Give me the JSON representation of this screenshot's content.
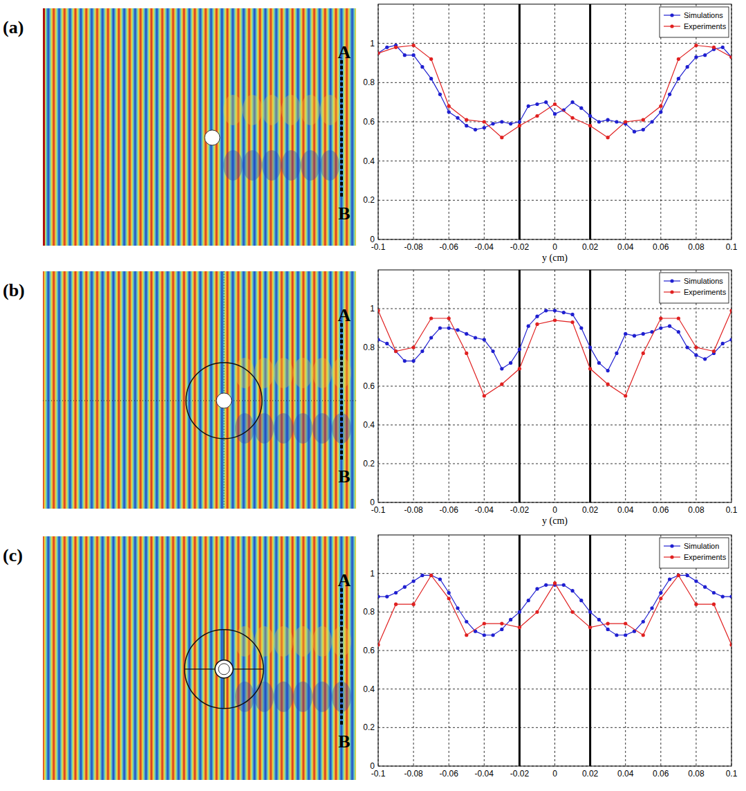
{
  "chart_data": [
    {
      "type": "line",
      "panel": "(a)",
      "field_labels": [
        "A",
        "B"
      ],
      "x_label": "y (cm)",
      "xlim": [
        -0.1,
        0.1
      ],
      "xticks": [
        -0.1,
        -0.08,
        -0.06,
        -0.04,
        -0.02,
        0,
        0.02,
        0.04,
        0.06,
        0.08,
        0.1
      ],
      "ylim": [
        0,
        1.2
      ],
      "yticks": [
        0,
        0.2,
        0.4,
        0.6,
        0.8,
        1
      ],
      "grid": true,
      "legend": "upper right",
      "vlines": [
        -0.02,
        0.02
      ],
      "series": [
        {
          "name": "Simulations",
          "color": "#1f1fd0",
          "marker": "circle",
          "line_style": "solid",
          "x": [
            -0.1,
            -0.095,
            -0.09,
            -0.085,
            -0.08,
            -0.075,
            -0.07,
            -0.065,
            -0.06,
            -0.055,
            -0.05,
            -0.045,
            -0.04,
            -0.035,
            -0.03,
            -0.025,
            -0.02,
            -0.015,
            -0.01,
            -0.005,
            0,
            0.005,
            0.01,
            0.015,
            0.02,
            0.025,
            0.03,
            0.035,
            0.04,
            0.045,
            0.05,
            0.055,
            0.06,
            0.065,
            0.07,
            0.075,
            0.08,
            0.085,
            0.09,
            0.095,
            0.1
          ],
          "values": [
            0.95,
            0.98,
            0.99,
            0.94,
            0.94,
            0.88,
            0.82,
            0.74,
            0.65,
            0.62,
            0.58,
            0.56,
            0.57,
            0.59,
            0.6,
            0.59,
            0.6,
            0.68,
            0.69,
            0.7,
            0.64,
            0.66,
            0.7,
            0.67,
            0.63,
            0.6,
            0.61,
            0.6,
            0.59,
            0.55,
            0.56,
            0.6,
            0.65,
            0.74,
            0.82,
            0.88,
            0.93,
            0.94,
            0.97,
            0.98,
            0.93
          ]
        },
        {
          "name": "Experiments",
          "color": "#e02020",
          "marker": "circle",
          "line_style": "solid",
          "x": [
            -0.1,
            -0.09,
            -0.08,
            -0.07,
            -0.06,
            -0.05,
            -0.04,
            -0.03,
            -0.02,
            -0.01,
            0,
            0.01,
            0.02,
            0.03,
            0.04,
            0.05,
            0.06,
            0.07,
            0.08,
            0.09,
            0.1
          ],
          "values": [
            0.95,
            0.98,
            0.99,
            0.92,
            0.68,
            0.61,
            0.6,
            0.52,
            0.58,
            0.63,
            0.69,
            0.62,
            0.58,
            0.52,
            0.6,
            0.61,
            0.68,
            0.92,
            0.99,
            0.98,
            0.93
          ]
        }
      ]
    },
    {
      "type": "line",
      "panel": "(b)",
      "field_labels": [
        "A",
        "B"
      ],
      "x_label": "y (cm)",
      "xlim": [
        -0.1,
        0.1
      ],
      "xticks": [
        -0.1,
        -0.08,
        -0.06,
        -0.04,
        -0.02,
        0,
        0.02,
        0.04,
        0.06,
        0.08,
        0.1
      ],
      "ylim": [
        0,
        1.2
      ],
      "yticks": [
        0,
        0.2,
        0.4,
        0.6,
        0.8,
        1
      ],
      "grid": true,
      "legend": "upper right",
      "vlines": [
        -0.02,
        0.02
      ],
      "series": [
        {
          "name": "Simulations",
          "color": "#1f1fd0",
          "marker": "circle",
          "line_style": "solid",
          "x": [
            -0.1,
            -0.095,
            -0.09,
            -0.085,
            -0.08,
            -0.075,
            -0.07,
            -0.065,
            -0.06,
            -0.055,
            -0.05,
            -0.045,
            -0.04,
            -0.035,
            -0.03,
            -0.025,
            -0.02,
            -0.015,
            -0.01,
            -0.005,
            0,
            0.005,
            0.01,
            0.015,
            0.02,
            0.025,
            0.03,
            0.035,
            0.04,
            0.045,
            0.05,
            0.055,
            0.06,
            0.065,
            0.07,
            0.075,
            0.08,
            0.085,
            0.09,
            0.095,
            0.1
          ],
          "values": [
            0.84,
            0.82,
            0.78,
            0.73,
            0.73,
            0.78,
            0.85,
            0.9,
            0.9,
            0.89,
            0.87,
            0.85,
            0.84,
            0.78,
            0.69,
            0.72,
            0.79,
            0.91,
            0.96,
            0.99,
            0.99,
            0.98,
            0.97,
            0.9,
            0.8,
            0.72,
            0.68,
            0.77,
            0.87,
            0.86,
            0.87,
            0.88,
            0.9,
            0.91,
            0.88,
            0.8,
            0.76,
            0.74,
            0.77,
            0.82,
            0.84
          ]
        },
        {
          "name": "Experiments",
          "color": "#e02020",
          "marker": "circle",
          "line_style": "solid",
          "x": [
            -0.1,
            -0.09,
            -0.08,
            -0.07,
            -0.06,
            -0.05,
            -0.04,
            -0.03,
            -0.02,
            -0.01,
            0,
            0.01,
            0.02,
            0.03,
            0.04,
            0.05,
            0.06,
            0.07,
            0.08,
            0.09,
            0.1
          ],
          "values": [
            0.99,
            0.78,
            0.8,
            0.95,
            0.95,
            0.77,
            0.55,
            0.61,
            0.69,
            0.92,
            0.94,
            0.93,
            0.69,
            0.61,
            0.55,
            0.77,
            0.95,
            0.95,
            0.8,
            0.78,
            0.99
          ]
        }
      ]
    },
    {
      "type": "line",
      "panel": "(c)",
      "field_labels": [
        "A",
        "B"
      ],
      "xlim": [
        -0.1,
        0.1
      ],
      "xticks": [
        -0.1,
        -0.08,
        -0.06,
        -0.04,
        -0.02,
        0,
        0.02,
        0.04,
        0.06,
        0.08,
        0.1
      ],
      "ylim": [
        0,
        1.2
      ],
      "yticks": [
        0,
        0.2,
        0.4,
        0.6,
        0.8,
        1
      ],
      "grid": true,
      "legend": "upper right",
      "vlines": [
        -0.02,
        0.02
      ],
      "series": [
        {
          "name": "Simulation",
          "color": "#1f1fd0",
          "marker": "circle",
          "line_style": "solid",
          "x": [
            -0.1,
            -0.095,
            -0.09,
            -0.085,
            -0.08,
            -0.075,
            -0.07,
            -0.065,
            -0.06,
            -0.055,
            -0.05,
            -0.045,
            -0.04,
            -0.035,
            -0.03,
            -0.025,
            -0.02,
            -0.015,
            -0.01,
            -0.005,
            0,
            0.005,
            0.01,
            0.015,
            0.02,
            0.025,
            0.03,
            0.035,
            0.04,
            0.045,
            0.05,
            0.055,
            0.06,
            0.065,
            0.07,
            0.075,
            0.08,
            0.085,
            0.09,
            0.095,
            0.1
          ],
          "values": [
            0.88,
            0.88,
            0.9,
            0.93,
            0.96,
            0.99,
            0.99,
            0.97,
            0.9,
            0.82,
            0.75,
            0.7,
            0.68,
            0.68,
            0.71,
            0.76,
            0.8,
            0.86,
            0.92,
            0.94,
            0.94,
            0.94,
            0.91,
            0.86,
            0.8,
            0.76,
            0.71,
            0.68,
            0.68,
            0.7,
            0.75,
            0.82,
            0.9,
            0.97,
            0.99,
            0.99,
            0.96,
            0.93,
            0.9,
            0.88,
            0.88
          ]
        },
        {
          "name": "Experiments",
          "color": "#e02020",
          "marker": "circle",
          "line_style": "solid",
          "x": [
            -0.1,
            -0.09,
            -0.08,
            -0.07,
            -0.06,
            -0.05,
            -0.04,
            -0.03,
            -0.02,
            -0.01,
            0,
            0.01,
            0.02,
            0.03,
            0.04,
            0.05,
            0.06,
            0.07,
            0.08,
            0.09,
            0.1
          ],
          "values": [
            0.63,
            0.84,
            0.84,
            0.99,
            0.87,
            0.68,
            0.74,
            0.74,
            0.72,
            0.8,
            0.95,
            0.8,
            0.72,
            0.74,
            0.74,
            0.68,
            0.87,
            0.99,
            0.84,
            0.84,
            0.63
          ]
        }
      ]
    }
  ]
}
